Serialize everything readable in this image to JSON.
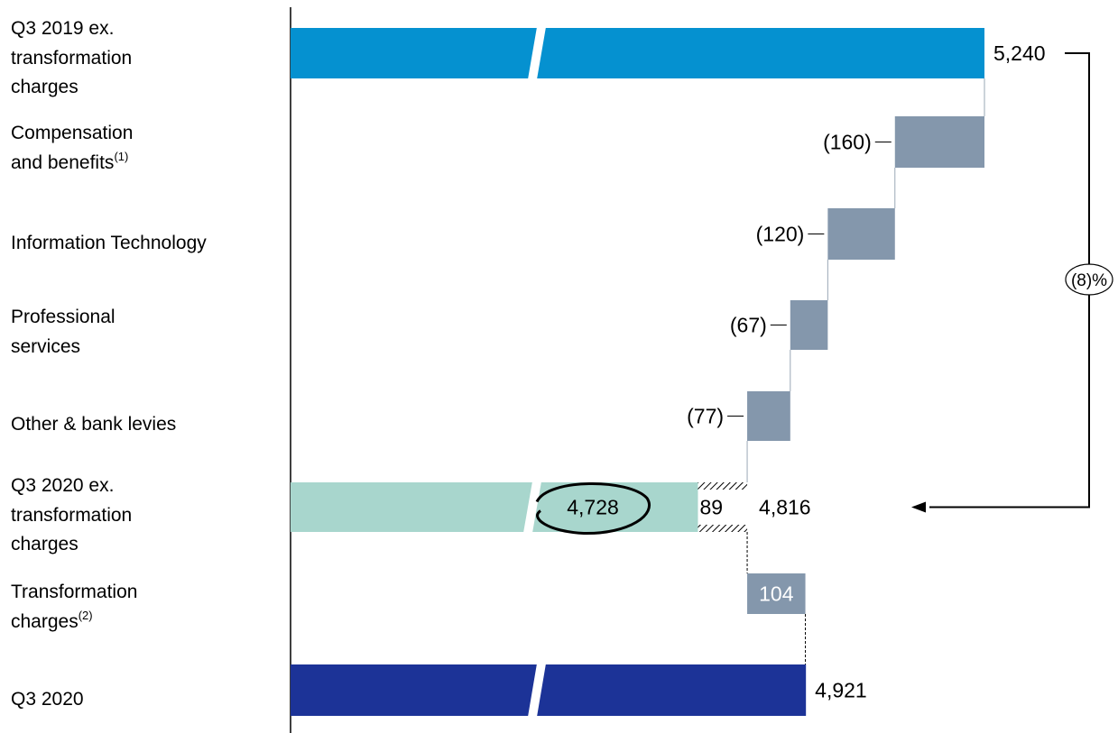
{
  "chart_data": {
    "type": "waterfall",
    "categories": [
      {
        "lines": [
          "Q3 2019 ex.",
          "transformation",
          "charges"
        ]
      },
      {
        "lines": [
          "Compensation",
          "and benefits"
        ],
        "superscript": "(1)"
      },
      {
        "lines": [
          "Information Technology"
        ]
      },
      {
        "lines": [
          "Professional",
          "services"
        ]
      },
      {
        "lines": [
          "Other & bank levies"
        ]
      },
      {
        "lines": [
          "Q3 2020 ex.",
          "transformation",
          "charges"
        ]
      },
      {
        "lines": [
          "Transformation",
          "charges"
        ],
        "superscript": "(2)"
      },
      {
        "lines": [
          "Q3 2020"
        ]
      }
    ],
    "bars": [
      {
        "kind": "total",
        "value": 5240,
        "label": "5,240",
        "color": "#0591d0",
        "broken_axis": true
      },
      {
        "kind": "delta",
        "value": -160,
        "label": "(160)",
        "color": "#8497ac"
      },
      {
        "kind": "delta",
        "value": -120,
        "label": "(120)",
        "color": "#8497ac"
      },
      {
        "kind": "delta",
        "value": -67,
        "label": "(67)",
        "color": "#8497ac"
      },
      {
        "kind": "delta",
        "value": -77,
        "label": "(77)",
        "color": "#8497ac"
      },
      {
        "kind": "total_split",
        "value": 4816,
        "label": "4,816",
        "color": "#a8d6cd",
        "split": [
          {
            "value": 4728,
            "label": "4,728",
            "circled": true
          },
          {
            "value": 89,
            "label": "89",
            "hatched": true
          }
        ],
        "broken_axis": true
      },
      {
        "kind": "delta",
        "value": 104,
        "label": "104",
        "color": "#8497ac",
        "label_inside": true
      },
      {
        "kind": "total",
        "value": 4921,
        "label": "4,921",
        "color": "#1c3397",
        "broken_axis": true
      }
    ],
    "annotation": {
      "label": "(8)%",
      "from": "Q3 2019 ex. transformation charges",
      "to": "Q3 2020 ex. transformation charges"
    },
    "axis_break": {
      "visible_min": 4000,
      "visible_max": 5240
    }
  }
}
